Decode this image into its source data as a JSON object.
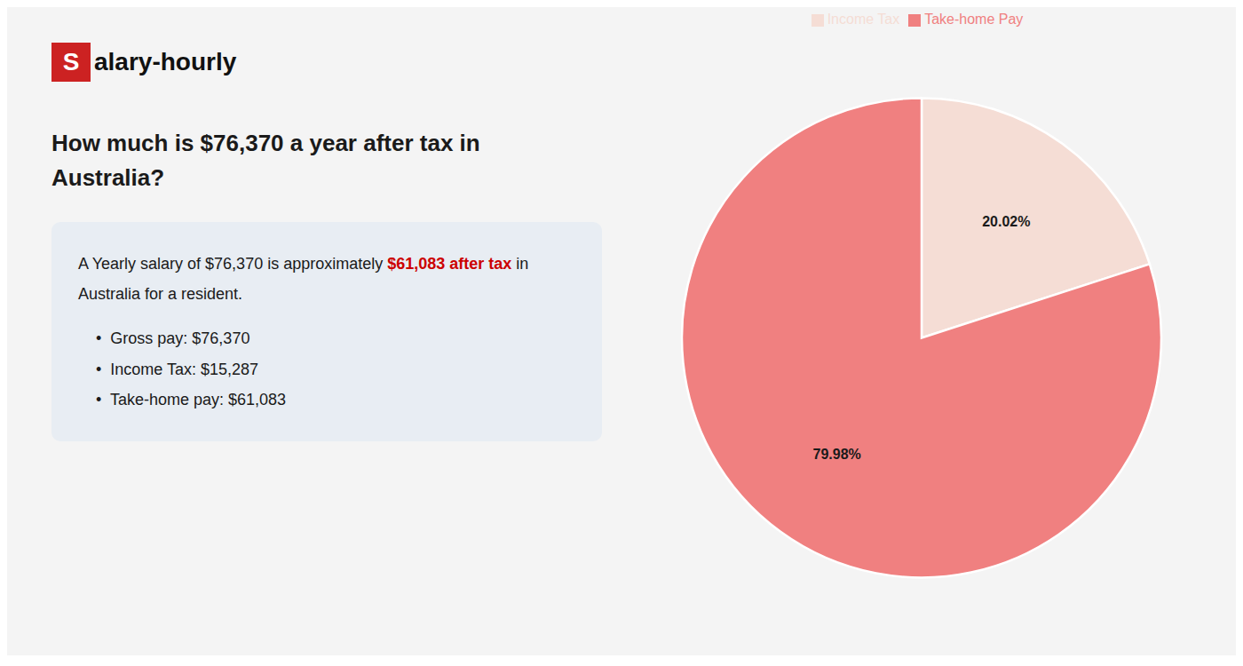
{
  "chart_data": {
    "type": "pie",
    "title": "How much is $76,370 a year after tax in Australia?",
    "categories": [
      "Income Tax",
      "Take-home Pay"
    ],
    "values": [
      20.02,
      79.98
    ],
    "value_labels": [
      "20.02%",
      "79.98%"
    ],
    "colors": [
      "#f5ddd5",
      "#f08080"
    ],
    "data_labels": true,
    "legend": "top",
    "annotations": [
      {
        "text": "S",
        "color": "#cc2222"
      },
      {
        "text": "alary-hourly"
      },
      {
        "text": "A Yearly salary of $76,370 is approximately "
      },
      {
        "text": "$61,083 after tax",
        "color": "#cc0000"
      },
      {
        "text": " in"
      },
      {
        "text": "Australia for a resident."
      },
      {
        "text": "•  Gross pay: $76,370"
      },
      {
        "text": "•  Income Tax: $15,287"
      },
      {
        "text": "•  Take-home pay: $61,083"
      }
    ]
  }
}
